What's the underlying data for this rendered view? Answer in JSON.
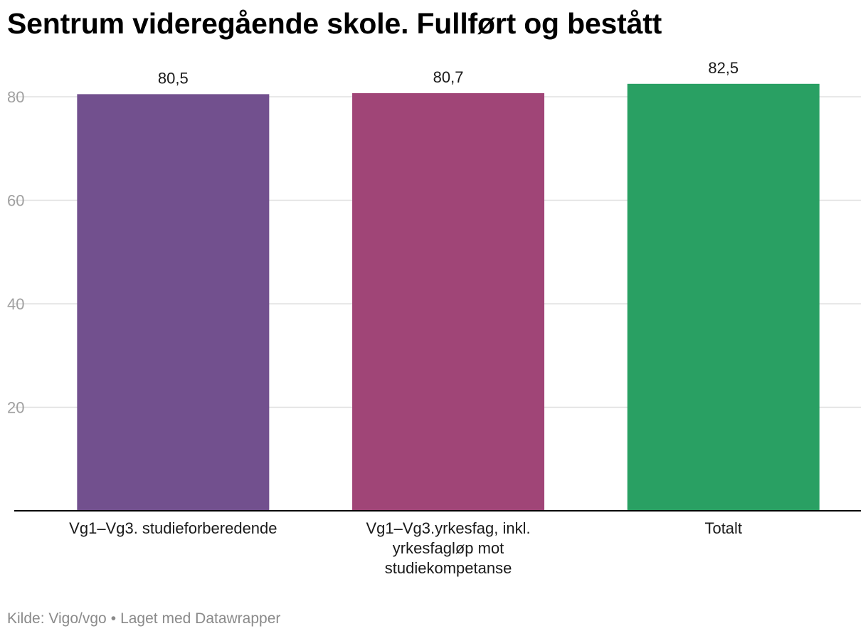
{
  "chart_data": {
    "type": "bar",
    "title": "Sentrum videregående skole. Fullført og bestått",
    "categories": [
      [
        "Vg1–Vg3. studieforberedende"
      ],
      [
        "Vg1–Vg3.yrkesfag, inkl.",
        "yrkesfagløp mot",
        "studiekompetanse"
      ],
      [
        "Totalt"
      ]
    ],
    "values": [
      80.5,
      80.7,
      82.5
    ],
    "value_labels": [
      "80,5",
      "80,7",
      "82,5"
    ],
    "colors": [
      "#72508e",
      "#a04577",
      "#29a063"
    ],
    "yticks": [
      20,
      40,
      60,
      80
    ],
    "ylim": [
      0,
      80
    ],
    "grid": true,
    "legend": "none"
  },
  "footer": {
    "source": "Kilde: Vigo/vgo",
    "separator": "•",
    "credit": "Laget med Datawrapper"
  },
  "colors": {
    "grid": "#e0e0e0",
    "axis": "#000000",
    "tick_label": "#a0a0a0",
    "text": "#1a1a1a"
  }
}
